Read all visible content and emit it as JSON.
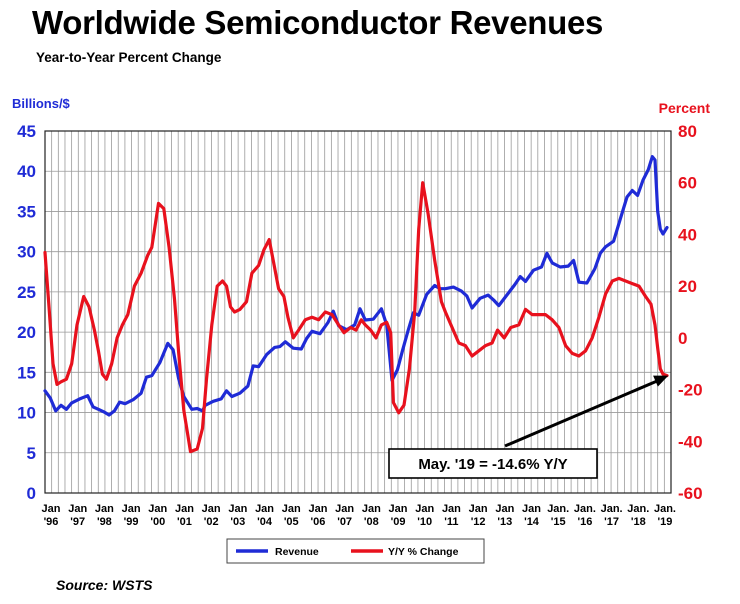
{
  "chart_data": {
    "type": "line",
    "title": "Worldwide Semiconductor Revenues",
    "subtitle": "Year-to-Year Percent Change",
    "ylabel_left": "Billions/$",
    "ylabel_right": "Percent",
    "source": "Source: WSTS",
    "yleft_range": [
      0,
      45
    ],
    "yleft_ticks": [
      0,
      5,
      10,
      15,
      20,
      25,
      30,
      35,
      40,
      45
    ],
    "yright_range": [
      -60,
      80
    ],
    "yright_ticks": [
      -60,
      -40,
      -20,
      0,
      20,
      40,
      60,
      80
    ],
    "x_range": [
      1996.0,
      2019.45
    ],
    "x_tick_labels": [
      {
        "x": 1996,
        "line1": "Jan",
        "line2": "'96"
      },
      {
        "x": 1997,
        "line1": "Jan",
        "line2": "'97"
      },
      {
        "x": 1998,
        "line1": "Jan",
        "line2": "'98"
      },
      {
        "x": 1999,
        "line1": "Jan",
        "line2": "'99"
      },
      {
        "x": 2000,
        "line1": "Jan",
        "line2": "'00"
      },
      {
        "x": 2001,
        "line1": "Jan",
        "line2": "'01"
      },
      {
        "x": 2002,
        "line1": "Jan",
        "line2": "'02"
      },
      {
        "x": 2003,
        "line1": "Jan",
        "line2": "'03"
      },
      {
        "x": 2004,
        "line1": "Jan",
        "line2": "'04"
      },
      {
        "x": 2005,
        "line1": "Jan",
        "line2": "'05"
      },
      {
        "x": 2006,
        "line1": "Jan",
        "line2": "'06"
      },
      {
        "x": 2007,
        "line1": "Jan",
        "line2": "'07"
      },
      {
        "x": 2008,
        "line1": "Jan",
        "line2": "'08"
      },
      {
        "x": 2009,
        "line1": "Jan",
        "line2": "'09"
      },
      {
        "x": 2010,
        "line1": "Jan",
        "line2": "'10"
      },
      {
        "x": 2011,
        "line1": "Jan",
        "line2": "'11"
      },
      {
        "x": 2012,
        "line1": "Jan",
        "line2": "'12"
      },
      {
        "x": 2013,
        "line1": "Jan",
        "line2": "'13"
      },
      {
        "x": 2014,
        "line1": "Jan",
        "line2": "'14"
      },
      {
        "x": 2015,
        "line1": "Jan.",
        "line2": "'15"
      },
      {
        "x": 2016,
        "line1": "Jan.",
        "line2": "'16"
      },
      {
        "x": 2017,
        "line1": "Jan.",
        "line2": "'17"
      },
      {
        "x": 2018,
        "line1": "Jan.",
        "line2": "'18"
      },
      {
        "x": 2019,
        "line1": "Jan.",
        "line2": "'19"
      }
    ],
    "grid": true,
    "legend_position": "bottom-center",
    "series": [
      {
        "name": "Revenue",
        "axis": "left",
        "color": "#1f2bd6",
        "points": [
          [
            1996.0,
            12.7
          ],
          [
            1996.2,
            11.8
          ],
          [
            1996.4,
            10.2
          ],
          [
            1996.6,
            10.9
          ],
          [
            1996.8,
            10.4
          ],
          [
            1997.0,
            11.2
          ],
          [
            1997.3,
            11.7
          ],
          [
            1997.6,
            12.1
          ],
          [
            1997.8,
            10.7
          ],
          [
            1998.0,
            10.4
          ],
          [
            1998.2,
            10.1
          ],
          [
            1998.4,
            9.7
          ],
          [
            1998.6,
            10.2
          ],
          [
            1998.8,
            11.3
          ],
          [
            1999.0,
            11.1
          ],
          [
            1999.3,
            11.6
          ],
          [
            1999.6,
            12.4
          ],
          [
            1999.8,
            14.4
          ],
          [
            2000.0,
            14.6
          ],
          [
            2000.3,
            16.2
          ],
          [
            2000.6,
            18.6
          ],
          [
            2000.8,
            17.8
          ],
          [
            2001.0,
            14.3
          ],
          [
            2001.2,
            12.0
          ],
          [
            2001.5,
            10.4
          ],
          [
            2001.7,
            10.5
          ],
          [
            2001.9,
            10.2
          ],
          [
            2002.0,
            10.9
          ],
          [
            2002.3,
            11.4
          ],
          [
            2002.6,
            11.7
          ],
          [
            2002.8,
            12.7
          ],
          [
            2003.0,
            12.0
          ],
          [
            2003.3,
            12.4
          ],
          [
            2003.6,
            13.3
          ],
          [
            2003.8,
            15.8
          ],
          [
            2004.0,
            15.7
          ],
          [
            2004.3,
            17.2
          ],
          [
            2004.6,
            18.1
          ],
          [
            2004.8,
            18.2
          ],
          [
            2005.0,
            18.8
          ],
          [
            2005.3,
            18.0
          ],
          [
            2005.6,
            17.9
          ],
          [
            2005.8,
            19.2
          ],
          [
            2006.0,
            20.1
          ],
          [
            2006.3,
            19.8
          ],
          [
            2006.6,
            21.2
          ],
          [
            2006.8,
            22.6
          ],
          [
            2007.0,
            20.8
          ],
          [
            2007.3,
            20.3
          ],
          [
            2007.6,
            20.9
          ],
          [
            2007.8,
            22.9
          ],
          [
            2008.0,
            21.5
          ],
          [
            2008.3,
            21.6
          ],
          [
            2008.6,
            22.9
          ],
          [
            2008.8,
            20.9
          ],
          [
            2009.0,
            14.0
          ],
          [
            2009.2,
            15.3
          ],
          [
            2009.4,
            17.8
          ],
          [
            2009.6,
            20.2
          ],
          [
            2009.8,
            22.4
          ],
          [
            2010.0,
            22.1
          ],
          [
            2010.3,
            24.7
          ],
          [
            2010.6,
            25.8
          ],
          [
            2010.8,
            25.4
          ],
          [
            2011.0,
            25.4
          ],
          [
            2011.3,
            25.6
          ],
          [
            2011.6,
            25.1
          ],
          [
            2011.8,
            24.5
          ],
          [
            2012.0,
            23.0
          ],
          [
            2012.3,
            24.2
          ],
          [
            2012.6,
            24.6
          ],
          [
            2012.8,
            24.0
          ],
          [
            2013.0,
            23.3
          ],
          [
            2013.3,
            24.6
          ],
          [
            2013.6,
            25.9
          ],
          [
            2013.8,
            26.9
          ],
          [
            2014.0,
            26.3
          ],
          [
            2014.3,
            27.7
          ],
          [
            2014.6,
            28.1
          ],
          [
            2014.8,
            29.8
          ],
          [
            2015.0,
            28.6
          ],
          [
            2015.3,
            28.1
          ],
          [
            2015.6,
            28.2
          ],
          [
            2015.8,
            28.9
          ],
          [
            2016.0,
            26.2
          ],
          [
            2016.3,
            26.1
          ],
          [
            2016.6,
            27.9
          ],
          [
            2016.8,
            29.8
          ],
          [
            2017.0,
            30.6
          ],
          [
            2017.3,
            31.3
          ],
          [
            2017.6,
            34.6
          ],
          [
            2017.8,
            36.8
          ],
          [
            2018.0,
            37.6
          ],
          [
            2018.2,
            37.0
          ],
          [
            2018.4,
            38.9
          ],
          [
            2018.6,
            40.2
          ],
          [
            2018.75,
            41.8
          ],
          [
            2018.85,
            41.4
          ],
          [
            2018.95,
            35.0
          ],
          [
            2019.05,
            32.8
          ],
          [
            2019.15,
            32.2
          ],
          [
            2019.3,
            33.0
          ]
        ]
      },
      {
        "name": "Y/Y % Change",
        "axis": "right",
        "color": "#e8111d",
        "points": [
          [
            1996.0,
            33
          ],
          [
            1996.15,
            12
          ],
          [
            1996.3,
            -10
          ],
          [
            1996.45,
            -18
          ],
          [
            1996.6,
            -17
          ],
          [
            1996.8,
            -16
          ],
          [
            1997.0,
            -10
          ],
          [
            1997.2,
            5
          ],
          [
            1997.45,
            16
          ],
          [
            1997.65,
            12
          ],
          [
            1997.85,
            3
          ],
          [
            1998.0,
            -5
          ],
          [
            1998.15,
            -14
          ],
          [
            1998.3,
            -16
          ],
          [
            1998.5,
            -10
          ],
          [
            1998.7,
            0
          ],
          [
            1998.9,
            5
          ],
          [
            1999.1,
            9
          ],
          [
            1999.35,
            20
          ],
          [
            1999.6,
            25
          ],
          [
            1999.85,
            32
          ],
          [
            2000.0,
            35
          ],
          [
            2000.25,
            52
          ],
          [
            2000.45,
            50
          ],
          [
            2000.65,
            35
          ],
          [
            2000.85,
            15
          ],
          [
            2001.0,
            -5
          ],
          [
            2001.2,
            -28
          ],
          [
            2001.45,
            -44
          ],
          [
            2001.7,
            -43
          ],
          [
            2001.9,
            -35
          ],
          [
            2002.05,
            -16
          ],
          [
            2002.25,
            5
          ],
          [
            2002.45,
            20
          ],
          [
            2002.65,
            22
          ],
          [
            2002.8,
            20
          ],
          [
            2002.95,
            12
          ],
          [
            2003.1,
            10
          ],
          [
            2003.3,
            11
          ],
          [
            2003.55,
            14
          ],
          [
            2003.75,
            25
          ],
          [
            2004.0,
            28
          ],
          [
            2004.2,
            34
          ],
          [
            2004.4,
            38
          ],
          [
            2004.55,
            30
          ],
          [
            2004.75,
            19
          ],
          [
            2004.95,
            16
          ],
          [
            2005.1,
            8
          ],
          [
            2005.3,
            0
          ],
          [
            2005.5,
            3
          ],
          [
            2005.75,
            7
          ],
          [
            2006.0,
            8
          ],
          [
            2006.25,
            7
          ],
          [
            2006.5,
            10
          ],
          [
            2006.75,
            9
          ],
          [
            2007.0,
            5
          ],
          [
            2007.2,
            2
          ],
          [
            2007.45,
            4
          ],
          [
            2007.65,
            3
          ],
          [
            2007.85,
            7
          ],
          [
            2008.0,
            5
          ],
          [
            2008.2,
            3
          ],
          [
            2008.4,
            0
          ],
          [
            2008.6,
            5
          ],
          [
            2008.8,
            6
          ],
          [
            2008.95,
            2
          ],
          [
            2009.05,
            -25
          ],
          [
            2009.25,
            -29
          ],
          [
            2009.45,
            -26
          ],
          [
            2009.65,
            -12
          ],
          [
            2009.85,
            10
          ],
          [
            2010.0,
            42
          ],
          [
            2010.15,
            60
          ],
          [
            2010.35,
            48
          ],
          [
            2010.6,
            30
          ],
          [
            2010.85,
            14
          ],
          [
            2011.0,
            10
          ],
          [
            2011.25,
            4
          ],
          [
            2011.5,
            -2
          ],
          [
            2011.75,
            -3
          ],
          [
            2012.0,
            -7
          ],
          [
            2012.25,
            -5
          ],
          [
            2012.5,
            -3
          ],
          [
            2012.75,
            -2
          ],
          [
            2012.95,
            3
          ],
          [
            2013.2,
            0
          ],
          [
            2013.45,
            4
          ],
          [
            2013.75,
            5
          ],
          [
            2014.0,
            11
          ],
          [
            2014.25,
            9
          ],
          [
            2014.5,
            9
          ],
          [
            2014.75,
            9
          ],
          [
            2015.0,
            7
          ],
          [
            2015.25,
            4
          ],
          [
            2015.5,
            -3
          ],
          [
            2015.75,
            -6
          ],
          [
            2016.0,
            -7
          ],
          [
            2016.25,
            -5
          ],
          [
            2016.5,
            0
          ],
          [
            2016.75,
            8
          ],
          [
            2017.0,
            17
          ],
          [
            2017.25,
            22
          ],
          [
            2017.5,
            23
          ],
          [
            2017.75,
            22
          ],
          [
            2018.0,
            21
          ],
          [
            2018.25,
            20
          ],
          [
            2018.5,
            16
          ],
          [
            2018.7,
            13
          ],
          [
            2018.85,
            5
          ],
          [
            2018.95,
            -4
          ],
          [
            2019.05,
            -12
          ],
          [
            2019.15,
            -14
          ],
          [
            2019.3,
            -14.6
          ]
        ]
      }
    ],
    "annotation": {
      "text": "May. '19 = -14.6% Y/Y",
      "target_x": 2019.35,
      "target_y_right": -14.6
    }
  }
}
